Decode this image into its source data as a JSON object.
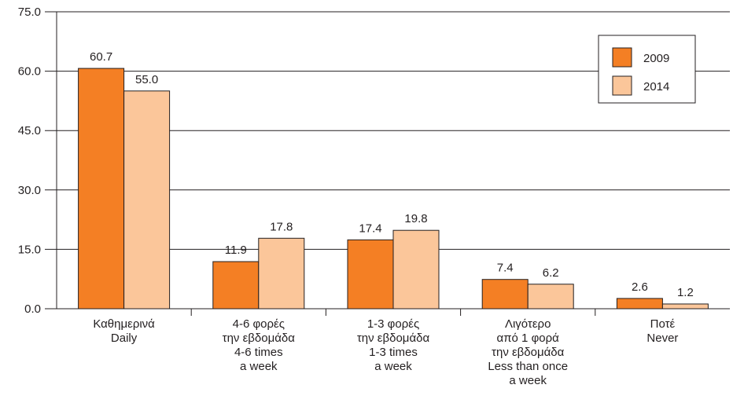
{
  "chart_data": {
    "type": "bar",
    "title": "",
    "xlabel": "",
    "ylabel": "",
    "ylim": [
      0,
      75
    ],
    "yticks": [
      "0.0",
      "15.0",
      "30.0",
      "45.0",
      "60.0",
      "75.0"
    ],
    "grid": true,
    "legend_position": "top-right",
    "categories": [
      [
        "Καθημερινά",
        "Daily"
      ],
      [
        "4-6 φορές",
        "την εβδομάδα",
        "4-6 times",
        "a week"
      ],
      [
        "1-3 φορές",
        "την εβδομάδα",
        "1-3 times",
        "a week"
      ],
      [
        "Λιγότερο",
        "από 1 φορά",
        "την εβδομάδα",
        "Less than once",
        "a week"
      ],
      [
        "Ποτέ",
        "Never"
      ]
    ],
    "series": [
      {
        "name": "2009",
        "color": "#f47f24",
        "values": [
          60.7,
          11.9,
          17.4,
          7.4,
          2.6
        ],
        "labels": [
          "60.7",
          "11.9",
          "17.4",
          "7.4",
          "2.6"
        ]
      },
      {
        "name": "2014",
        "color": "#fbc69a",
        "values": [
          55.0,
          17.8,
          19.8,
          6.2,
          1.2
        ],
        "labels": [
          "55.0",
          "17.8",
          "19.8",
          "6.2",
          "1.2"
        ]
      }
    ]
  }
}
